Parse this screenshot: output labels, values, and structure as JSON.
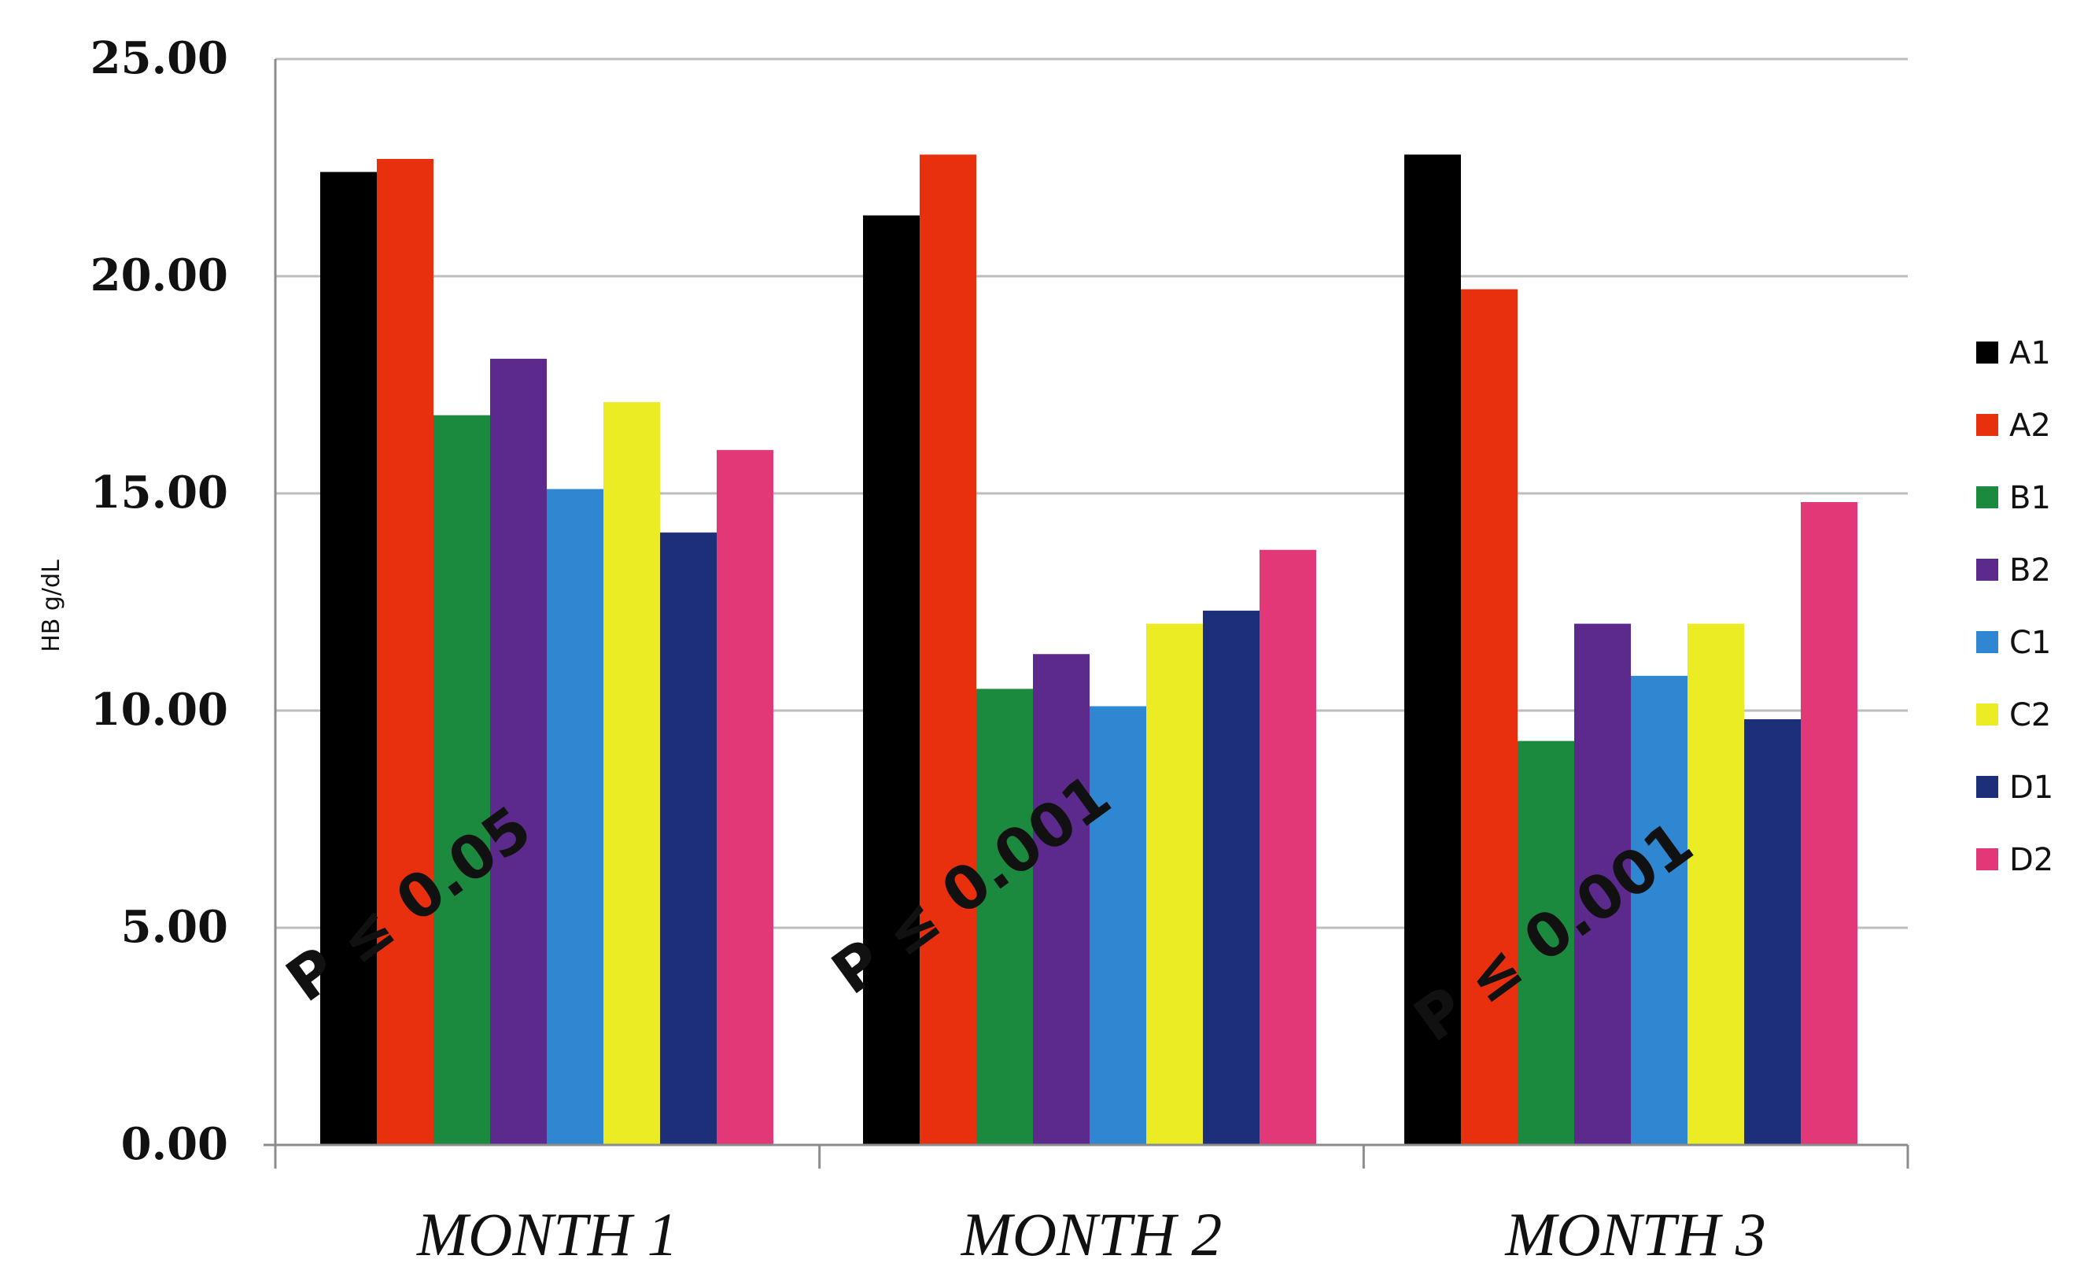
{
  "chart_data": {
    "type": "bar",
    "title": "",
    "xlabel": "",
    "ylabel": "HB g/dL",
    "ylim": [
      0,
      25
    ],
    "yticks": [
      "0.00",
      "5.00",
      "10.00",
      "15.00",
      "20.00",
      "25.00"
    ],
    "grid": true,
    "legend_position": "right",
    "categories": [
      "MONTH 1",
      "MONTH 2",
      "MONTH 3"
    ],
    "series": [
      {
        "name": "A1",
        "color": "#000000",
        "values": [
          22.4,
          21.4,
          22.8
        ]
      },
      {
        "name": "A2",
        "color": "#e8300e",
        "values": [
          22.7,
          22.8,
          19.7
        ]
      },
      {
        "name": "B1",
        "color": "#1c8a3e",
        "values": [
          16.8,
          10.5,
          9.3
        ]
      },
      {
        "name": "B2",
        "color": "#5c2a8c",
        "values": [
          18.1,
          11.3,
          12.0
        ]
      },
      {
        "name": "C1",
        "color": "#2f87d1",
        "values": [
          15.1,
          10.1,
          10.8
        ]
      },
      {
        "name": "C2",
        "color": "#ecec24",
        "values": [
          17.1,
          12.0,
          12.0
        ]
      },
      {
        "name": "D1",
        "color": "#1c2f78",
        "values": [
          14.1,
          12.3,
          9.8
        ]
      },
      {
        "name": "D2",
        "color": "#e33878",
        "values": [
          16.0,
          13.7,
          14.8
        ]
      }
    ],
    "annotations": [
      "P ≤ 0.05",
      "P ≤ 0.001",
      "P ≤ 0.001"
    ]
  }
}
